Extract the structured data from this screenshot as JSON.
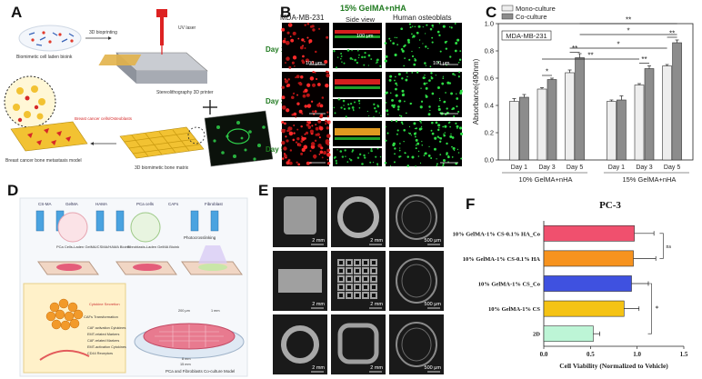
{
  "panels": {
    "A": {
      "letter": "A",
      "labels": {
        "bioink": "Biomimetic cell laden bioink",
        "bioprint": "3D bioprinting",
        "uv": "UV laser",
        "printer": "Stereolithography 3D printer",
        "cells": "Breast cancer cells/Osteoblasts",
        "matrix": "3D biomimetic bone matrix",
        "model": "Breast cancer bone metastasis model"
      }
    },
    "B": {
      "letter": "B",
      "title": "15% GelMA+nHA",
      "col_left": "MDA-MB-231",
      "col_mid": "Side view",
      "col_right": "Human osteoblats",
      "rows": [
        "Day 1",
        "Day 3",
        "Day 5"
      ],
      "scale_bar": "100 μm"
    },
    "C": {
      "letter": "C"
    },
    "D": {
      "letter": "D",
      "legend": [
        "CS-MA",
        "GelMA",
        "HAMA",
        "PCa cells",
        "CAFs",
        "Fibroblast"
      ],
      "labels": {
        "inkA": "PCa Cells-Laden GelMA/CSMA/HAMA Bioink",
        "inkB": "Fibroblasts-Laden GelMA Bioink",
        "photo": "Photocrosslinking",
        "cytokine": "Cytokine Secretion",
        "transform": "CAFs Transformation",
        "markers": [
          "CAF activation Cytokines",
          "EMT-related Markers",
          "CAF-related Markers",
          "EMT-activation Cytokines",
          "CD44 Receptors"
        ],
        "model": "PCa and Fibroblasts Co-culture Model",
        "dims": [
          "200 μm",
          "1 mm",
          "8 mm",
          "15 mm"
        ]
      }
    },
    "E": {
      "letter": "E",
      "scale_labels": [
        "2 mm",
        "2 mm",
        "500 μm",
        "2 mm",
        "2 mm",
        "500 μm",
        "2 mm",
        "2 mm",
        "500 μm"
      ]
    },
    "F": {
      "letter": "F"
    }
  },
  "chart_data": [
    {
      "type": "bar",
      "title": "",
      "ylabel": "Absorbance(490nm)",
      "ylim": [
        0,
        1.0
      ],
      "yticks": [
        "0.0",
        "0.2",
        "0.4",
        "0.6",
        "0.8",
        "1.0"
      ],
      "categories": [
        "Day 1",
        "Day 3",
        "Day 5",
        "Day 1",
        "Day 3",
        "Day 5"
      ],
      "groups": [
        "10% GelMA+nHA",
        "15% GelMA+nHA"
      ],
      "legend_placement": "top-left",
      "annotation": "MDA-MB-231",
      "series": [
        {
          "name": "Mono-culture",
          "values": [
            0.43,
            0.52,
            0.64,
            0.43,
            0.55,
            0.69
          ],
          "errors": [
            0.02,
            0.01,
            0.02,
            0.01,
            0.01,
            0.01
          ],
          "color": "#eeeeee"
        },
        {
          "name": "Co-culture",
          "values": [
            0.46,
            0.59,
            0.75,
            0.44,
            0.67,
            0.86
          ],
          "errors": [
            0.02,
            0.01,
            0.03,
            0.03,
            0.02,
            0.02
          ],
          "color": "#8c8c8c"
        }
      ],
      "significance": [
        "*",
        "**",
        "**",
        "**",
        "*",
        "*",
        "**",
        "**"
      ]
    },
    {
      "type": "bar",
      "orientation": "horizontal",
      "title": "PC-3",
      "xlabel": "Cell Viability (Normalized to Vehicle)",
      "xlim": [
        0,
        1.5
      ],
      "xticks": [
        "0.0",
        "0.5",
        "1.0",
        "1.5"
      ],
      "categories": [
        "10% GelMA-1% CS-0.1% HA_Co",
        "10% GelMA-1% CS-0.1% HA",
        "10% GelMA-1% CS_Co",
        "10% GelMA-1% CS",
        "2D"
      ],
      "values": [
        0.97,
        0.96,
        0.94,
        0.86,
        0.53
      ],
      "errors": [
        0.21,
        0.24,
        0.18,
        0.16,
        0.07
      ],
      "colors": [
        "#f0506e",
        "#f7931e",
        "#3f51e0",
        "#f5c314",
        "#bdf5d6"
      ],
      "significance": [
        "ns",
        "*"
      ]
    }
  ]
}
